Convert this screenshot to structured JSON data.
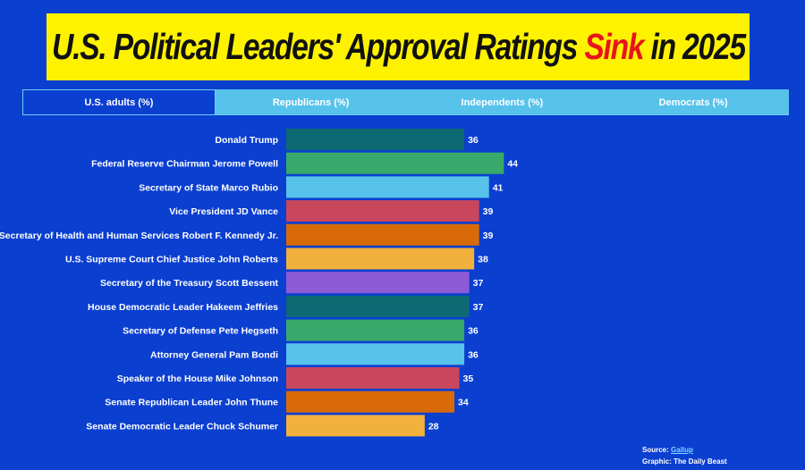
{
  "title": {
    "part1": "U.S. Political Leaders' Approval Ratings ",
    "accent": "Sink",
    "part2": " in 2025"
  },
  "tabs": [
    {
      "label": "U.S. adults (%)",
      "active": true
    },
    {
      "label": "Republicans (%)",
      "active": false
    },
    {
      "label": "Independents (%)",
      "active": false
    },
    {
      "label": "Democrats (%)",
      "active": false
    }
  ],
  "chart_data": {
    "type": "bar",
    "orientation": "horizontal",
    "categories": [
      "Donald Trump",
      "Federal Reserve Chairman Jerome Powell",
      "Secretary of State Marco Rubio",
      "Vice President JD Vance",
      "Secretary of Health and Human Services Robert F. Kennedy Jr.",
      "U.S. Supreme Court Chief Justice John Roberts",
      "Secretary of the Treasury Scott Bessent",
      "House Democratic Leader Hakeem Jeffries",
      "Secretary of Defense Pete Hegseth",
      "Attorney General Pam Bondi",
      "Speaker of the House Mike Johnson",
      "Senate Republican Leader John Thune",
      "Senate Democratic Leader Chuck Schumer"
    ],
    "values": [
      36,
      44,
      41,
      39,
      39,
      38,
      37,
      37,
      36,
      36,
      35,
      34,
      28
    ],
    "colors": [
      "#0d6a72",
      "#38a96a",
      "#57c2ea",
      "#c9475c",
      "#d86b08",
      "#f2b13d",
      "#8e5bd6",
      "#0d6a72",
      "#38a96a",
      "#57c2ea",
      "#c9475c",
      "#d86b08",
      "#f2b13d"
    ],
    "xlim": [
      0,
      100
    ],
    "grid": false
  },
  "credits": {
    "source_label": "Source:",
    "source_link": "Gallup",
    "graphic_label": "Graphic: The Daily Beast"
  }
}
